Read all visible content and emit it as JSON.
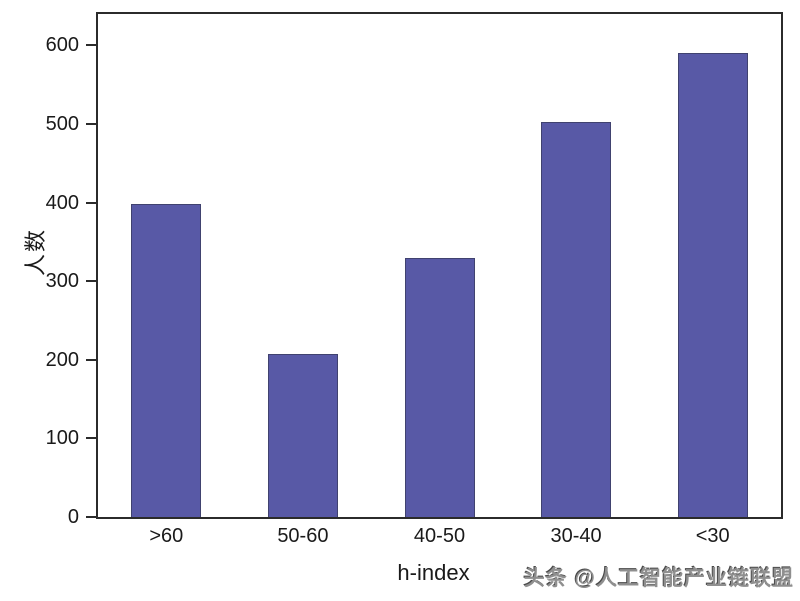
{
  "chart_data": {
    "type": "bar",
    "categories": [
      ">60",
      "50-60",
      "40-50",
      "30-40",
      "<30"
    ],
    "values": [
      398,
      207,
      330,
      502,
      591
    ],
    "title": "",
    "xlabel": "h-index",
    "ylabel": "人数",
    "ylim": [
      0,
      640
    ],
    "yticks": [
      0,
      100,
      200,
      300,
      400,
      500,
      600
    ],
    "grid": false,
    "legend": "none",
    "bar_color": "#5859a6",
    "bar_border_color": "#40426f",
    "axis_color": "#2b2b2b",
    "text_color": "#1a1a1a"
  },
  "watermark": {
    "text": "头条 @人工智能产业链联盟"
  }
}
